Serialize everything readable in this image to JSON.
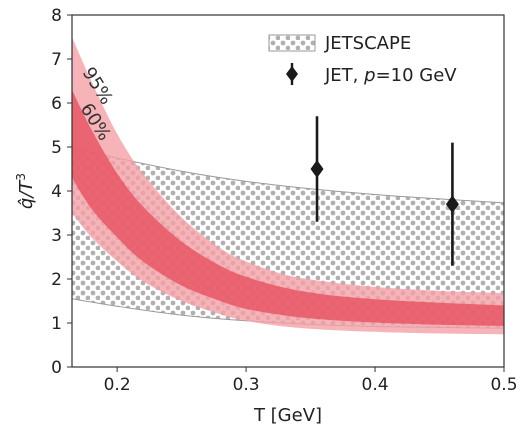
{
  "chart_data": {
    "type": "line",
    "xlabel": "T [GeV]",
    "ylabel_main": "q̂/T",
    "ylabel_sup": "3",
    "xlim": [
      0.165,
      0.5
    ],
    "ylim": [
      0,
      8
    ],
    "xticks": [
      0.2,
      0.3,
      0.4,
      0.5
    ],
    "xtick_labels": [
      "0.2",
      "0.3",
      "0.4",
      "0.5"
    ],
    "yticks": [
      0,
      1,
      2,
      3,
      4,
      5,
      6,
      7,
      8
    ],
    "ytick_labels": [
      "0",
      "1",
      "2",
      "3",
      "4",
      "5",
      "6",
      "7",
      "8"
    ],
    "grid": false,
    "legend_position": "top-right",
    "legend": {
      "band_label": "JETSCAPE",
      "points_label_prefix": "JET, ",
      "points_label_var": "p",
      "points_label_suffix": "=10 GeV"
    },
    "annotations": {
      "outer": "95%",
      "inner": "60%"
    },
    "colors": {
      "band95": "#f4a0a6",
      "band60": "#e8505f",
      "jetscape_dots": "#b0b0b0",
      "points": "#1a1a1a"
    },
    "jetscape_band": {
      "x": [
        0.165,
        0.2,
        0.25,
        0.3,
        0.35,
        0.4,
        0.45,
        0.5
      ],
      "lower": [
        1.55,
        1.38,
        1.18,
        1.05,
        0.97,
        0.92,
        0.9,
        0.88
      ],
      "upper": [
        4.98,
        4.75,
        4.45,
        4.22,
        4.05,
        3.92,
        3.82,
        3.73
      ]
    },
    "band_95": {
      "x": [
        0.165,
        0.18,
        0.2,
        0.22,
        0.25,
        0.28,
        0.3,
        0.33,
        0.36,
        0.4,
        0.45,
        0.5
      ],
      "lower": [
        3.5,
        2.95,
        2.4,
        1.95,
        1.5,
        1.2,
        1.05,
        0.92,
        0.85,
        0.8,
        0.76,
        0.74
      ],
      "upper": [
        7.5,
        6.5,
        5.3,
        4.4,
        3.4,
        2.7,
        2.4,
        2.1,
        1.95,
        1.82,
        1.73,
        1.68
      ]
    },
    "band_60": {
      "x": [
        0.165,
        0.18,
        0.2,
        0.22,
        0.25,
        0.28,
        0.3,
        0.33,
        0.36,
        0.4,
        0.45,
        0.5
      ],
      "lower": [
        4.3,
        3.6,
        2.95,
        2.4,
        1.85,
        1.5,
        1.32,
        1.17,
        1.08,
        1.01,
        0.96,
        0.93
      ],
      "upper": [
        6.3,
        5.4,
        4.4,
        3.65,
        2.85,
        2.3,
        2.05,
        1.8,
        1.65,
        1.54,
        1.46,
        1.4
      ]
    },
    "points": [
      {
        "x": 0.355,
        "y": 4.5,
        "err_low": 3.3,
        "err_high": 5.7
      },
      {
        "x": 0.46,
        "y": 3.7,
        "err_low": 2.3,
        "err_high": 5.1
      }
    ]
  }
}
